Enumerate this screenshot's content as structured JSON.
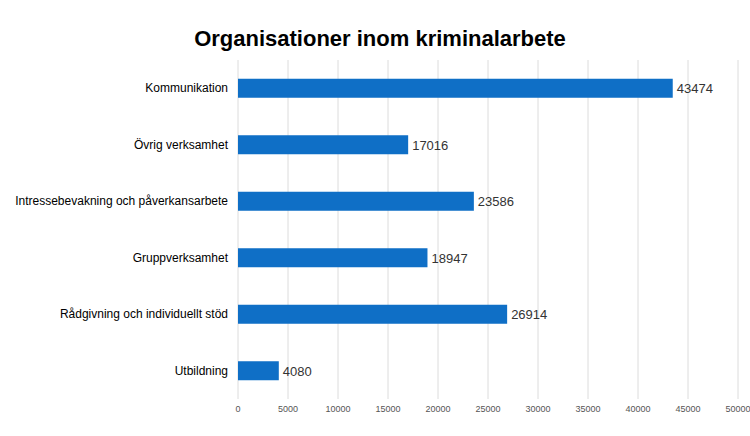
{
  "chart_data": {
    "type": "bar",
    "orientation": "horizontal",
    "title": "Organisationer inom kriminalarbete",
    "categories": [
      "Kommunikation",
      "Övrig verksamhet",
      "Intressebevakning och påverkansarbete",
      "Gruppverksamhet",
      "Rådgivning och individuellt stöd",
      "Utbildning"
    ],
    "values": [
      43474,
      17016,
      23586,
      18947,
      26914,
      4080
    ],
    "color": "#0f6fc6",
    "xlim": [
      0,
      50000
    ],
    "xticks": [
      0,
      5000,
      10000,
      15000,
      20000,
      25000,
      30000,
      35000,
      40000,
      45000,
      50000
    ],
    "grid": true,
    "data_labels": true
  }
}
